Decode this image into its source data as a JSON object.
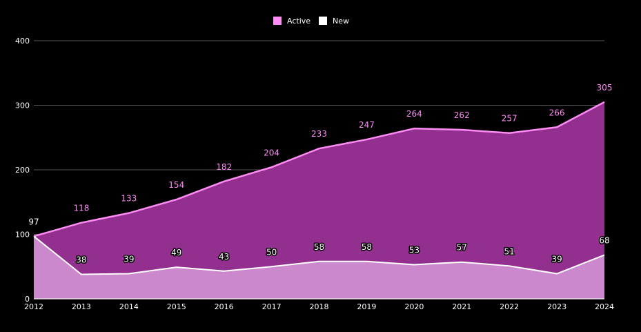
{
  "chart_data": {
    "type": "area",
    "x": [
      "2012",
      "2013",
      "2014",
      "2015",
      "2016",
      "2017",
      "2018",
      "2019",
      "2020",
      "2021",
      "2022",
      "2023",
      "2024"
    ],
    "series": [
      {
        "name": "Active",
        "values": [
          97,
          118,
          133,
          154,
          182,
          204,
          233,
          247,
          264,
          262,
          257,
          266,
          305
        ],
        "color": "#ff8cf5",
        "fill": "#93308f"
      },
      {
        "name": "New",
        "values": [
          97,
          38,
          39,
          49,
          43,
          50,
          58,
          58,
          53,
          57,
          51,
          39,
          68
        ],
        "color": "#ffffff",
        "fill": "#cc88cc"
      }
    ],
    "ylim": [
      0,
      400
    ],
    "yticks": [
      0,
      100,
      200,
      300,
      400
    ],
    "grid": true,
    "legend": "top-center",
    "data_labels": true
  }
}
